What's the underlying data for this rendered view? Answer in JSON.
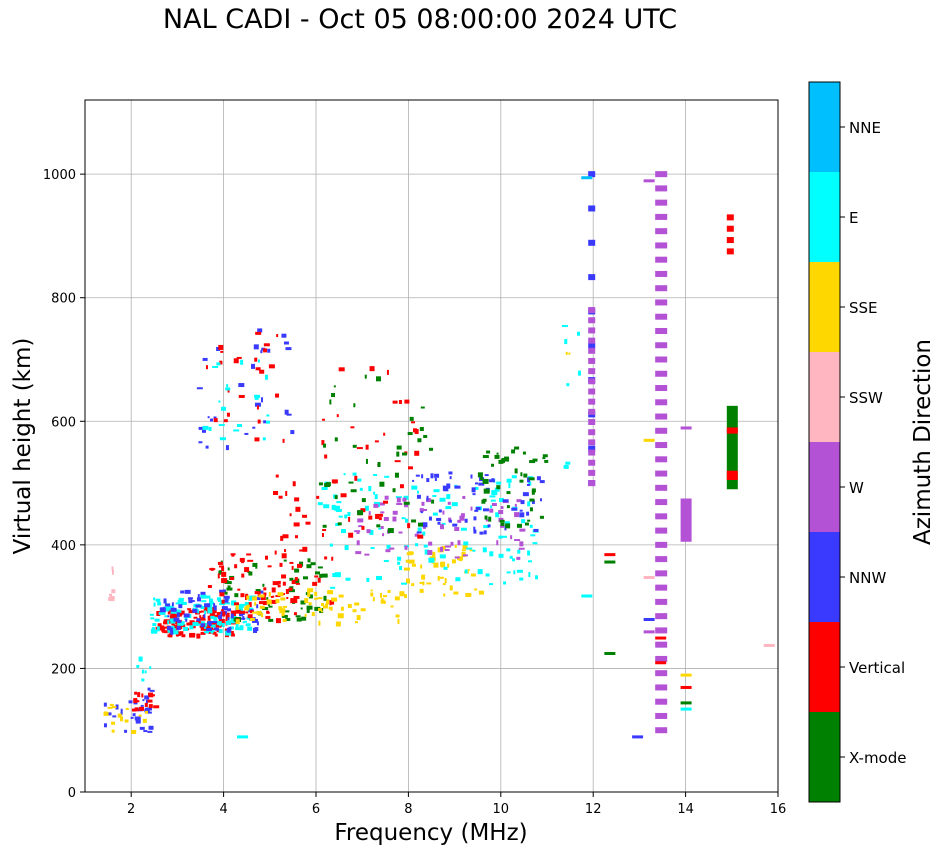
{
  "chart_data": {
    "type": "scatter",
    "title": "NAL CADI - Oct 05 08:00:00 2024 UTC",
    "xlabel": "Frequency (MHz)",
    "ylabel": "Virtual height (km)",
    "xlim": [
      1,
      16
    ],
    "ylim": [
      0,
      1120
    ],
    "xticks": [
      2,
      4,
      6,
      8,
      10,
      12,
      14,
      16
    ],
    "yticks": [
      0,
      200,
      400,
      600,
      800,
      1000
    ],
    "grid": true,
    "colorbar": {
      "label": "Azimuth Direction",
      "categories": [
        {
          "name": "X-mode",
          "color": "#008000"
        },
        {
          "name": "Vertical",
          "color": "#ff0000"
        },
        {
          "name": "NNW",
          "color": "#3a3aff"
        },
        {
          "name": "W",
          "color": "#b452d6"
        },
        {
          "name": "SSW",
          "color": "#ffb6c1"
        },
        {
          "name": "SSE",
          "color": "#ffd700"
        },
        {
          "name": "E",
          "color": "#00ffff"
        },
        {
          "name": "NNE",
          "color": "#00bfff"
        }
      ]
    },
    "echoes": [
      {
        "dir": "Vertical",
        "x_range": [
          2.5,
          4.2
        ],
        "h_range": [
          255,
          300
        ],
        "n": 120
      },
      {
        "dir": "E",
        "x_range": [
          2.4,
          4.6
        ],
        "h_range": [
          260,
          320
        ],
        "n": 110
      },
      {
        "dir": "NNW",
        "x_range": [
          2.6,
          4.8
        ],
        "h_range": [
          260,
          330
        ],
        "n": 70
      },
      {
        "dir": "X-mode",
        "x_range": [
          3.8,
          6.2
        ],
        "h_range": [
          280,
          380
        ],
        "n": 60
      },
      {
        "dir": "Vertical",
        "x_range": [
          3.6,
          5.6
        ],
        "h_range": [
          280,
          390
        ],
        "n": 70
      },
      {
        "dir": "SSE",
        "x_range": [
          4.2,
          7.8
        ],
        "h_range": [
          275,
          330
        ],
        "n": 70
      },
      {
        "dir": "SSE",
        "x_range": [
          7.8,
          9.6
        ],
        "h_range": [
          320,
          400
        ],
        "n": 50
      },
      {
        "dir": "E",
        "x_range": [
          6.0,
          10.8
        ],
        "h_range": [
          330,
          520
        ],
        "n": 120
      },
      {
        "dir": "W",
        "x_range": [
          6.8,
          10.5
        ],
        "h_range": [
          380,
          480
        ],
        "n": 70
      },
      {
        "dir": "NNW",
        "x_range": [
          8.0,
          11.0
        ],
        "h_range": [
          420,
          520
        ],
        "n": 60
      },
      {
        "dir": "X-mode",
        "x_range": [
          9.5,
          11.0
        ],
        "h_range": [
          430,
          560
        ],
        "n": 45
      },
      {
        "dir": "Vertical",
        "x_range": [
          6.0,
          8.2
        ],
        "h_range": [
          400,
          690
        ],
        "n": 40
      },
      {
        "dir": "X-mode",
        "x_range": [
          6.0,
          8.5
        ],
        "h_range": [
          420,
          680
        ],
        "n": 40
      },
      {
        "dir": "Vertical",
        "x_range": [
          5.0,
          6.4
        ],
        "h_range": [
          300,
          520
        ],
        "n": 35
      },
      {
        "dir": "NNW",
        "x_range": [
          3.4,
          5.5
        ],
        "h_range": [
          560,
          760
        ],
        "n": 30
      },
      {
        "dir": "Vertical",
        "x_range": [
          3.6,
          5.4
        ],
        "h_range": [
          560,
          760
        ],
        "n": 25
      },
      {
        "dir": "E",
        "x_range": [
          3.5,
          5.2
        ],
        "h_range": [
          570,
          700
        ],
        "n": 20
      },
      {
        "dir": "NNW",
        "x_range": [
          1.4,
          2.4
        ],
        "h_range": [
          95,
          170
        ],
        "n": 30
      },
      {
        "dir": "SSE",
        "x_range": [
          1.4,
          2.3
        ],
        "h_range": [
          100,
          160
        ],
        "n": 15
      },
      {
        "dir": "Vertical",
        "x_range": [
          2.0,
          2.5
        ],
        "h_range": [
          135,
          165
        ],
        "n": 15
      },
      {
        "dir": "E",
        "x_range": [
          2.1,
          2.4
        ],
        "h_range": [
          170,
          230
        ],
        "n": 6
      },
      {
        "dir": "SSW",
        "x_range": [
          1.5,
          1.6
        ],
        "h_range": [
          290,
          400
        ],
        "n": 6
      },
      {
        "dir": "E",
        "x_range": [
          11.2,
          11.7
        ],
        "h_range": [
          500,
          760
        ],
        "n": 8
      },
      {
        "dir": "SSE",
        "x_range": [
          11.3,
          11.5
        ],
        "h_range": [
          700,
          720
        ],
        "n": 2
      }
    ],
    "columns": [
      {
        "dir": "NNW",
        "x": 12.0,
        "h_range": [
          500,
          1000
        ],
        "seg": 10
      },
      {
        "dir": "W",
        "x": 12.0,
        "h_range": [
          500,
          780
        ],
        "seg": 18
      },
      {
        "dir": "W",
        "x": 13.45,
        "h_range": [
          100,
          1000
        ],
        "seg": 40
      },
      {
        "dir": "W",
        "x": 14.0,
        "h_range": [
          405,
          475
        ],
        "seg": 1
      },
      {
        "dir": "X-mode",
        "x": 15.0,
        "h_range": [
          490,
          625
        ],
        "seg": 1
      },
      {
        "dir": "Vertical",
        "x": 15.0,
        "h_range": [
          505,
          520
        ],
        "seg": 1
      },
      {
        "dir": "Vertical",
        "x": 15.0,
        "h_range": [
          580,
          590
        ],
        "seg": 1
      },
      {
        "dir": "Vertical",
        "x": 15.0,
        "h_range": [
          875,
          930
        ],
        "seg": 4
      }
    ],
    "isolated": [
      {
        "dir": "Vertical",
        "x": 12.35,
        "h": 385
      },
      {
        "dir": "X-mode",
        "x": 12.35,
        "h": 373
      },
      {
        "dir": "X-mode",
        "x": 12.35,
        "h": 225
      },
      {
        "dir": "NNW",
        "x": 12.95,
        "h": 90
      },
      {
        "dir": "NNW",
        "x": 13.2,
        "h": 280
      },
      {
        "dir": "W",
        "x": 13.2,
        "h": 260
      },
      {
        "dir": "SSW",
        "x": 13.2,
        "h": 348
      },
      {
        "dir": "SSE",
        "x": 13.2,
        "h": 570
      },
      {
        "dir": "Vertical",
        "x": 13.45,
        "h": 250
      },
      {
        "dir": "Vertical",
        "x": 13.45,
        "h": 210
      },
      {
        "dir": "Vertical",
        "x": 14.0,
        "h": 170
      },
      {
        "dir": "X-mode",
        "x": 14.0,
        "h": 145
      },
      {
        "dir": "E",
        "x": 14.0,
        "h": 135
      },
      {
        "dir": "SSE",
        "x": 14.0,
        "h": 190
      },
      {
        "dir": "W",
        "x": 14.0,
        "h": 590
      },
      {
        "dir": "SSW",
        "x": 15.8,
        "h": 238
      },
      {
        "dir": "E",
        "x": 11.85,
        "h": 318
      },
      {
        "dir": "NNE",
        "x": 11.85,
        "h": 995
      },
      {
        "dir": "W",
        "x": 13.2,
        "h": 990
      },
      {
        "dir": "E",
        "x": 4.4,
        "h": 90
      }
    ]
  }
}
